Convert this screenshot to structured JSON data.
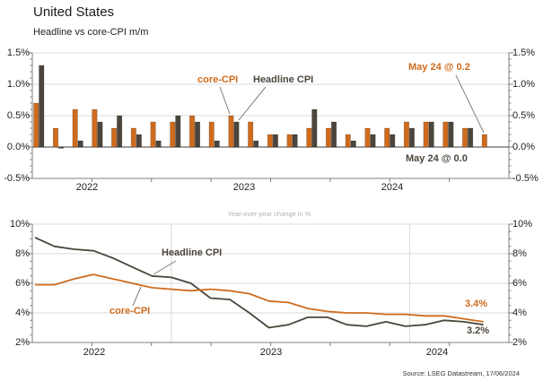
{
  "header": {
    "title": "United States"
  },
  "source_note": "Source: LSEG Datastream, 17/06/2024",
  "colors": {
    "core": "#cf6b1d",
    "headline": "#4c453c",
    "gridline": "#d9d9d9",
    "axis": "#7f7f7f",
    "muted_title": "#b3b3b3"
  },
  "chart_data": [
    {
      "type": "bar",
      "title": "Headline vs core-CPI m/m",
      "months": [
        "Jun 2022",
        "Jul 2022",
        "Aug 2022",
        "Sep 2022",
        "Oct 2022",
        "Nov 2022",
        "Dec 2022",
        "Jan 2023",
        "Feb 2023",
        "Mar 2023",
        "Apr 2023",
        "May 2023",
        "Jun 2023",
        "Jul 2023",
        "Aug 2023",
        "Sep 2023",
        "Oct 2023",
        "Nov 2023",
        "Dec 2023",
        "Jan 2024",
        "Feb 2024",
        "Mar 2024",
        "Apr 2024",
        "May 2024"
      ],
      "series": [
        {
          "name": "core-CPI",
          "values": [
            0.7,
            0.3,
            0.6,
            0.6,
            0.3,
            0.3,
            0.4,
            0.4,
            0.5,
            0.4,
            0.5,
            0.4,
            0.2,
            0.2,
            0.3,
            0.3,
            0.2,
            0.3,
            0.3,
            0.4,
            0.4,
            0.4,
            0.3,
            0.2
          ]
        },
        {
          "name": "Headline CPI",
          "values": [
            1.3,
            -0.02,
            0.1,
            0.4,
            0.5,
            0.2,
            0.1,
            0.5,
            0.4,
            0.1,
            0.4,
            0.1,
            0.2,
            0.2,
            0.6,
            0.4,
            0.1,
            0.2,
            0.2,
            0.3,
            0.4,
            0.4,
            0.3,
            0.0
          ]
        }
      ],
      "ylim": [
        -0.5,
        1.5
      ],
      "y_ticks": [
        "1.5%",
        "1.0%",
        "0.5%",
        "0.0%",
        "-0.5%"
      ],
      "x_year_labels": [
        "2022",
        "2023",
        "2024"
      ],
      "annotations": {
        "core_label": "core-CPI",
        "headline_label": "Headline CPI",
        "last_core": "May 24 @ 0.2",
        "last_headline": "May 24 @ 0.0"
      }
    },
    {
      "type": "line",
      "title": "Year-over-year change in %",
      "months": [
        "Jun 2022",
        "Jul 2022",
        "Aug 2022",
        "Sep 2022",
        "Oct 2022",
        "Nov 2022",
        "Dec 2022",
        "Jan 2023",
        "Feb 2023",
        "Mar 2023",
        "Apr 2023",
        "May 2023",
        "Jun 2023",
        "Jul 2023",
        "Aug 2023",
        "Sep 2023",
        "Oct 2023",
        "Nov 2023",
        "Dec 2023",
        "Jan 2024",
        "Feb 2024",
        "Mar 2024",
        "Apr 2024",
        "May 2024"
      ],
      "series": [
        {
          "name": "core-CPI",
          "values": [
            5.9,
            5.9,
            6.3,
            6.6,
            6.3,
            6.0,
            5.7,
            5.6,
            5.5,
            5.6,
            5.5,
            5.3,
            4.8,
            4.7,
            4.3,
            4.1,
            4.0,
            4.0,
            3.9,
            3.9,
            3.8,
            3.8,
            3.6,
            3.4
          ]
        },
        {
          "name": "Headline CPI",
          "values": [
            9.1,
            8.5,
            8.3,
            8.2,
            7.7,
            7.1,
            6.5,
            6.4,
            6.0,
            5.0,
            4.9,
            4.0,
            3.0,
            3.2,
            3.7,
            3.7,
            3.2,
            3.1,
            3.4,
            3.1,
            3.2,
            3.5,
            3.4,
            3.2
          ]
        }
      ],
      "ylim": [
        2,
        10
      ],
      "y_ticks": [
        "10%",
        "8%",
        "6%",
        "4%",
        "2%"
      ],
      "x_year_labels": [
        "2022",
        "2023",
        "2024"
      ],
      "annotations": {
        "core_label": "core-CPI",
        "headline_label": "Headline CPI"
      },
      "end_labels": {
        "core": "3.4%",
        "headline": "3.2%"
      }
    }
  ]
}
